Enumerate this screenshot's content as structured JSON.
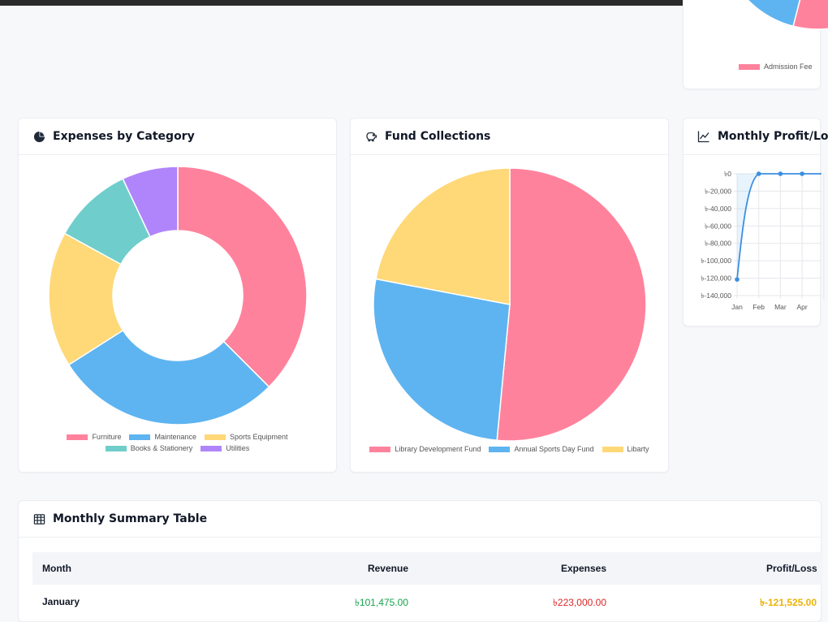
{
  "colors": {
    "pink": "#ff829c",
    "blue": "#5eb4f0",
    "yellow": "#ffd878",
    "teal": "#6fcecb",
    "purple": "#b085fb",
    "green": "#16a34a",
    "red": "#dc2626",
    "amber": "#eab308"
  },
  "top_card": {
    "legend": [
      {
        "label": "Admission Fee",
        "color": "#ff829c"
      }
    ]
  },
  "expenses_card": {
    "title": "Expenses by Category",
    "icon": "pie-chart-icon"
  },
  "fund_card": {
    "title": "Fund Collections",
    "icon": "piggy-bank-icon"
  },
  "profit_card": {
    "title": "Monthly Profit/Lo",
    "icon": "line-chart-icon"
  },
  "summary_card": {
    "title": "Monthly Summary Table",
    "icon": "table-icon",
    "columns": [
      "Month",
      "Revenue",
      "Expenses",
      "Profit/Loss"
    ],
    "rows": [
      {
        "month": "January",
        "revenue": "৳101,475.00",
        "expenses": "৳223,000.00",
        "profit": "৳-121,525.00"
      }
    ]
  },
  "chart_data": [
    {
      "type": "pie",
      "id": "admission-chart",
      "categories": [
        "Admission Fee"
      ],
      "legend_position": "bottom"
    },
    {
      "type": "pie",
      "variant": "doughnut",
      "id": "expenses-chart",
      "categories": [
        "Furniture",
        "Maintenance",
        "Sports Equipment",
        "Books & Stationery",
        "Utilities"
      ],
      "values": [
        37.5,
        28.5,
        17,
        10,
        7
      ],
      "colors": [
        "#ff829c",
        "#5eb4f0",
        "#ffd878",
        "#6fcecb",
        "#b085fb"
      ],
      "legend_position": "bottom"
    },
    {
      "type": "pie",
      "id": "fund-chart",
      "categories": [
        "Library Development Fund",
        "Annual Sports Day Fund",
        "Libarty"
      ],
      "values": [
        51.5,
        26.5,
        22
      ],
      "colors": [
        "#ff829c",
        "#5eb4f0",
        "#ffd878"
      ],
      "legend_position": "bottom"
    },
    {
      "type": "line",
      "id": "profit-chart",
      "x": [
        "Jan",
        "Feb",
        "Mar",
        "Apr"
      ],
      "values": [
        -121525,
        0,
        0,
        0
      ],
      "ylim": [
        -140000,
        0
      ],
      "yticks": [
        "৳0",
        "৳-20,000",
        "৳-40,000",
        "৳-60,000",
        "৳-80,000",
        "৳-100,000",
        "৳-120,000",
        "৳-140,000"
      ],
      "color": "#3b8fe0",
      "grid": true
    }
  ]
}
